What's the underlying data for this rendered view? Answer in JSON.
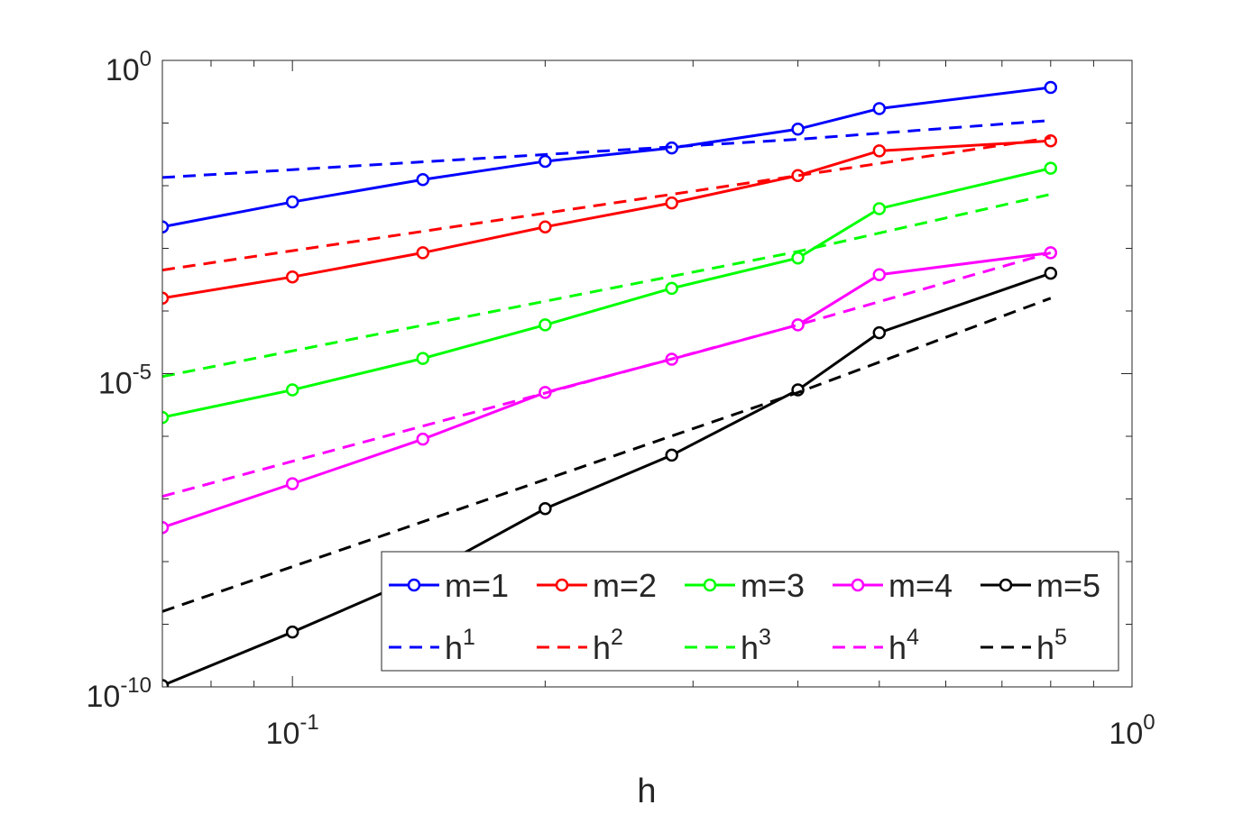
{
  "chart_data": {
    "type": "line",
    "xlabel": "h",
    "ylabel": "",
    "xscale": "log",
    "yscale": "log",
    "xlim": [
      0.07,
      1.0
    ],
    "ylim": [
      1e-10,
      1.0
    ],
    "grid": false,
    "x_ticks": [
      {
        "value": 0.1,
        "base": "10",
        "exp": "-1"
      },
      {
        "value": 1.0,
        "base": "10",
        "exp": "0"
      }
    ],
    "y_ticks": [
      {
        "value": 1e-10,
        "base": "10",
        "exp": "-10"
      },
      {
        "value": 1e-05,
        "base": "10",
        "exp": "-5"
      },
      {
        "value": 1.0,
        "base": "10",
        "exp": "0"
      }
    ],
    "x": [
      0.07,
      0.1,
      0.143,
      0.2,
      0.283,
      0.4,
      0.5,
      0.8
    ],
    "series": [
      {
        "name": "m=1",
        "color": "#0000ff",
        "style": "solid",
        "marker": "circle",
        "values": [
          0.0022,
          0.0055,
          0.0125,
          0.0245,
          0.04,
          0.08,
          0.17,
          0.37
        ]
      },
      {
        "name": "m=2",
        "color": "#ff0000",
        "style": "solid",
        "marker": "circle",
        "values": [
          0.00016,
          0.00035,
          0.00085,
          0.0022,
          0.0053,
          0.0145,
          0.036,
          0.052
        ]
      },
      {
        "name": "m=3",
        "color": "#00ff00",
        "style": "solid",
        "marker": "circle",
        "values": [
          2e-06,
          5.5e-06,
          1.75e-05,
          6e-05,
          0.00023,
          0.0007,
          0.0043,
          0.019
        ]
      },
      {
        "name": "m=4",
        "color": "#ff00ff",
        "style": "solid",
        "marker": "circle",
        "values": [
          3.5e-08,
          1.75e-07,
          9e-07,
          5e-06,
          1.7e-05,
          6e-05,
          0.00038,
          0.00085
        ]
      },
      {
        "name": "m=5",
        "color": "#000000",
        "style": "solid",
        "marker": "circle",
        "values": [
          1.05e-10,
          7.5e-10,
          6e-09,
          7e-08,
          5e-07,
          5.5e-06,
          4.5e-05,
          0.0004
        ]
      },
      {
        "name": "h",
        "exp": "1",
        "color": "#0000ff",
        "style": "dashed",
        "marker": "none",
        "x": [
          0.07,
          0.4,
          0.8
        ],
        "values": [
          0.0135,
          0.055,
          0.11
        ]
      },
      {
        "name": "h",
        "exp": "2",
        "color": "#ff0000",
        "style": "dashed",
        "marker": "none",
        "x": [
          0.07,
          0.4,
          0.8
        ],
        "values": [
          0.00045,
          0.0145,
          0.058
        ]
      },
      {
        "name": "h",
        "exp": "3",
        "color": "#00ff00",
        "style": "dashed",
        "marker": "none",
        "x": [
          0.07,
          0.4,
          0.8
        ],
        "values": [
          9e-06,
          0.00089,
          0.0073
        ]
      },
      {
        "name": "h",
        "exp": "4",
        "color": "#ff00ff",
        "style": "dashed",
        "marker": "none",
        "x": [
          0.07,
          0.4,
          0.8
        ],
        "values": [
          1.1e-07,
          6e-05,
          0.00085
        ]
      },
      {
        "name": "h",
        "exp": "5",
        "color": "#000000",
        "style": "dashed",
        "marker": "none",
        "x": [
          0.07,
          0.4,
          0.8
        ],
        "values": [
          1.6e-09,
          5e-06,
          0.00016
        ]
      }
    ],
    "legend": {
      "placement": "bottom-right",
      "columns": 5
    }
  }
}
